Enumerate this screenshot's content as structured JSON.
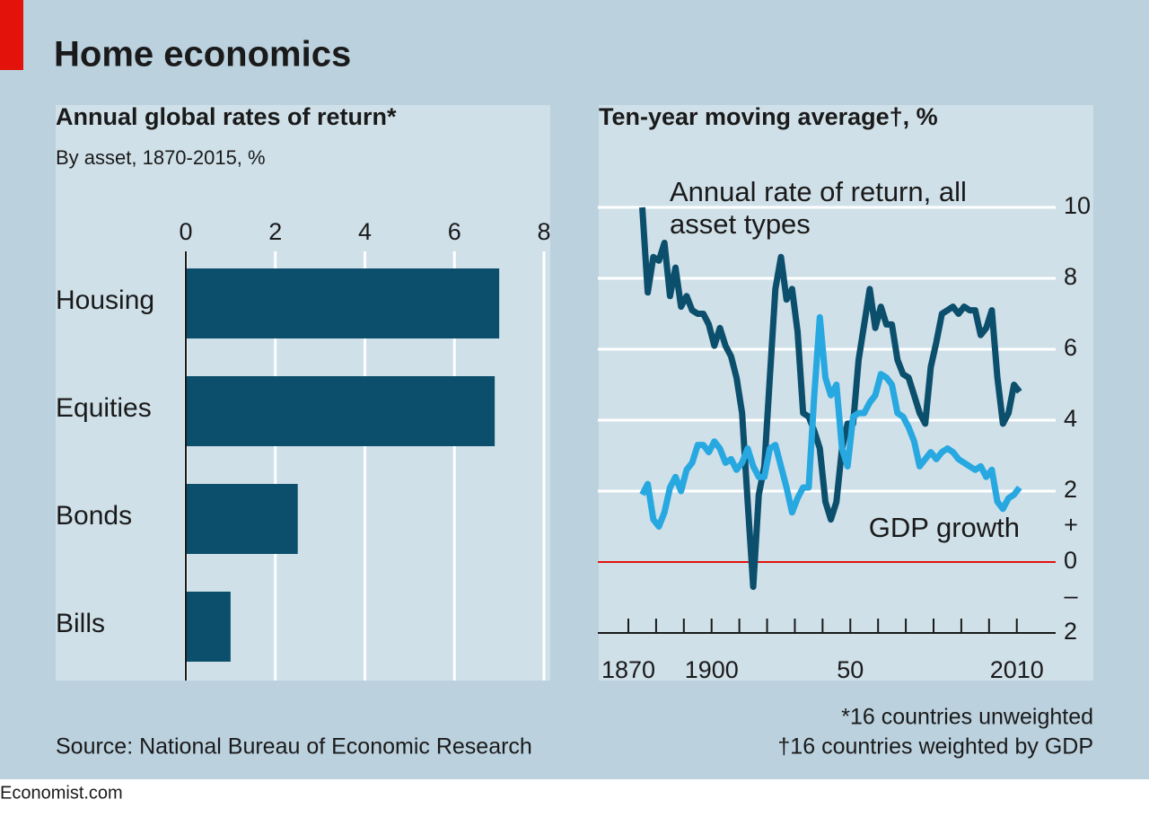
{
  "title": "Home economics",
  "source": "Source: National Bureau of Economic Research",
  "footnotes": [
    "*16 countries unweighted",
    "†16 countries weighted by GDP"
  ],
  "credit": "Economist.com",
  "chart_data": [
    {
      "type": "hbar",
      "title": "Annual global rates of return*",
      "subtitle": "By asset, 1870-2015, %",
      "categories": [
        "Housing",
        "Equities",
        "Bonds",
        "Bills"
      ],
      "values": [
        7.0,
        6.9,
        2.5,
        1.0
      ],
      "color": "#0b4f6c",
      "xlim": [
        0,
        8
      ],
      "xticks": [
        0,
        2,
        4,
        6,
        8
      ],
      "grid": true
    },
    {
      "type": "line",
      "title": "Ten-year moving average†, %",
      "x": [
        1875,
        1877,
        1879,
        1881,
        1883,
        1885,
        1887,
        1889,
        1891,
        1893,
        1895,
        1897,
        1899,
        1901,
        1903,
        1905,
        1907,
        1909,
        1911,
        1913,
        1915,
        1917,
        1919,
        1921,
        1923,
        1925,
        1927,
        1929,
        1931,
        1933,
        1935,
        1937,
        1939,
        1941,
        1943,
        1945,
        1947,
        1949,
        1951,
        1953,
        1955,
        1957,
        1959,
        1961,
        1963,
        1965,
        1967,
        1969,
        1971,
        1973,
        1975,
        1977,
        1979,
        1981,
        1983,
        1985,
        1987,
        1989,
        1991,
        1993,
        1995,
        1997,
        1999,
        2001,
        2003,
        2005,
        2007,
        2009,
        2011
      ],
      "series": [
        {
          "name": "Annual rate of return, all asset types",
          "color": "#0b4f6c",
          "values": [
            10.0,
            7.6,
            8.6,
            8.5,
            9.0,
            7.5,
            8.3,
            7.2,
            7.5,
            7.1,
            7.0,
            7.0,
            6.7,
            6.1,
            6.6,
            6.1,
            5.8,
            5.2,
            4.2,
            1.7,
            -0.7,
            1.9,
            2.7,
            5.2,
            7.7,
            8.6,
            7.4,
            7.7,
            6.5,
            4.2,
            4.1,
            3.7,
            3.2,
            1.7,
            1.2,
            1.7,
            3.2,
            3.9,
            3.9,
            5.7,
            6.7,
            7.7,
            6.6,
            7.2,
            6.7,
            6.7,
            5.7,
            5.3,
            5.2,
            4.7,
            4.2,
            3.9,
            5.5,
            6.2,
            7.0,
            7.1,
            7.2,
            7.0,
            7.2,
            7.1,
            7.1,
            6.4,
            6.6,
            7.1,
            5.2,
            3.9,
            4.2,
            5.0,
            4.8
          ]
        },
        {
          "name": "GDP growth",
          "color": "#27a8e0",
          "values": [
            1.9,
            2.2,
            1.2,
            1.0,
            1.4,
            2.1,
            2.4,
            2.0,
            2.6,
            2.8,
            3.3,
            3.3,
            3.1,
            3.4,
            3.2,
            2.8,
            2.9,
            2.6,
            2.8,
            3.2,
            2.7,
            2.4,
            2.4,
            3.2,
            3.3,
            2.7,
            2.1,
            1.4,
            1.8,
            2.1,
            2.1,
            4.7,
            6.9,
            5.2,
            4.7,
            5.0,
            3.2,
            2.7,
            4.1,
            4.2,
            4.2,
            4.5,
            4.7,
            5.3,
            5.2,
            5.0,
            4.2,
            4.1,
            3.8,
            3.4,
            2.7,
            2.9,
            3.1,
            2.9,
            3.1,
            3.2,
            3.1,
            2.9,
            2.8,
            2.7,
            2.6,
            2.7,
            2.4,
            2.6,
            1.7,
            1.5,
            1.8,
            1.9,
            2.1
          ]
        }
      ],
      "xlim": [
        1859,
        2024
      ],
      "xticks": [
        1870,
        1900,
        {
          "value": 1950,
          "label": "50"
        },
        2010
      ],
      "xminorticks": [
        1880,
        1890,
        1910,
        1920,
        1930,
        1940,
        1960,
        1970,
        1980,
        1990,
        2000
      ],
      "ylim": [
        -2,
        10
      ],
      "yticks": [
        {
          "value": -2,
          "label": "2"
        },
        0,
        2,
        4,
        6,
        8,
        10
      ],
      "sign_labels": [
        {
          "value": 1,
          "label": "+"
        },
        {
          "value": -1,
          "label": "–"
        }
      ],
      "grid": true,
      "zero_line_color": "#e3120b",
      "y_axis_side": "right"
    }
  ]
}
